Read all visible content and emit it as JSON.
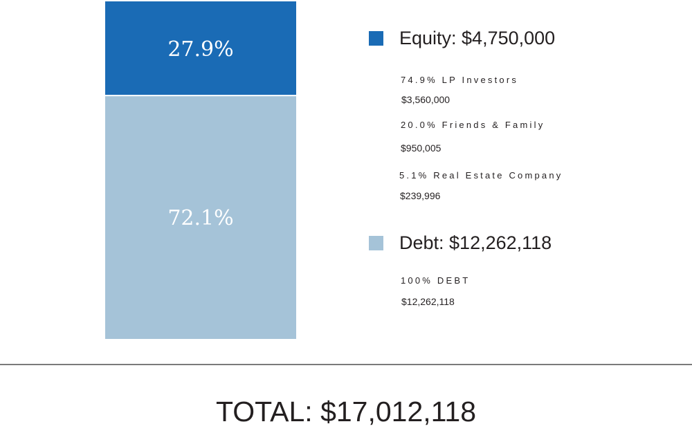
{
  "chart_data": {
    "type": "bar",
    "stacked": true,
    "categories": [
      ""
    ],
    "series": [
      {
        "name": "Equity",
        "values": [
          27.9
        ],
        "label": "27.9%",
        "color": "#1a6bb5"
      },
      {
        "name": "Debt",
        "values": [
          72.1
        ],
        "label": "72.1%",
        "color": "#a5c3d8"
      }
    ],
    "ylim": [
      0,
      100
    ],
    "grid": false,
    "legend_position": "right"
  },
  "legend": {
    "equity": {
      "title": "Equity: $4,750,000",
      "color": "#1a6bb5",
      "items": [
        {
          "label": "74.9% LP Investors",
          "amount": "$3,560,000"
        },
        {
          "label": "20.0% Friends & Family",
          "amount": "$950,005"
        },
        {
          "label": "5.1% Real Estate Company",
          "amount": "$239,996"
        }
      ]
    },
    "debt": {
      "title": "Debt: $12,262,118",
      "color": "#a5c3d8",
      "items": [
        {
          "label": "100% DEBT",
          "amount": "$12,262,118"
        }
      ]
    }
  },
  "total": "TOTAL: $17,012,118"
}
